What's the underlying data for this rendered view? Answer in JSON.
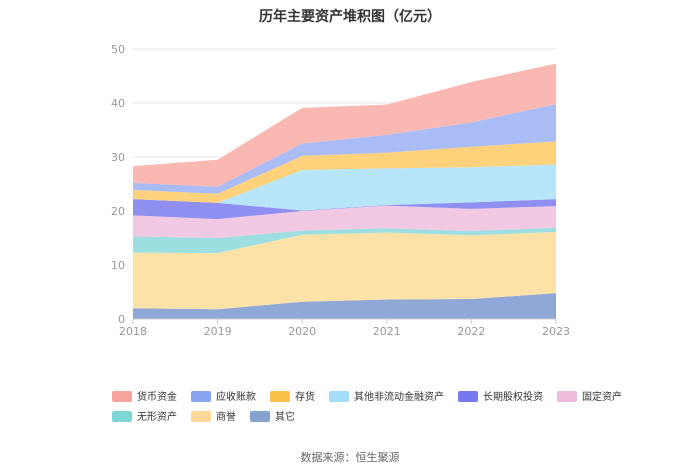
{
  "chart_data": {
    "type": "area",
    "stacked": true,
    "title": "历年主要资产堆积图（亿元）",
    "x": [
      "2018",
      "2019",
      "2020",
      "2021",
      "2022",
      "2023"
    ],
    "yticks": [
      "0",
      "10",
      "20",
      "30",
      "40",
      "50"
    ],
    "ylim": [
      0,
      50
    ],
    "grid": true,
    "legend_position": "bottom",
    "series": [
      {
        "name": "其它",
        "color": "#8fa8d6",
        "values": [
          2.0,
          1.8,
          3.2,
          3.6,
          3.7,
          4.8
        ]
      },
      {
        "name": "商誉",
        "color": "#fde2a8",
        "values": [
          10.3,
          10.4,
          12.4,
          12.4,
          11.8,
          11.3
        ]
      },
      {
        "name": "无形资产",
        "color": "#9ddfe0",
        "values": [
          3.0,
          2.8,
          0.8,
          0.8,
          0.8,
          0.8
        ]
      },
      {
        "name": "固定资产",
        "color": "#f2c9e2",
        "values": [
          3.9,
          3.5,
          3.6,
          4.2,
          4.1,
          4.0
        ]
      },
      {
        "name": "长期股权投资",
        "color": "#8f8ff2",
        "values": [
          3.0,
          3.0,
          0.1,
          0.1,
          1.2,
          1.3
        ]
      },
      {
        "name": "其他非流动金融资产",
        "color": "#b7e6fb",
        "values": [
          0.0,
          0.0,
          7.5,
          6.8,
          6.5,
          6.4
        ]
      },
      {
        "name": "存货",
        "color": "#fdd27a",
        "values": [
          1.7,
          1.7,
          2.6,
          2.9,
          3.8,
          4.3
        ]
      },
      {
        "name": "应收账款",
        "color": "#a9bcf5",
        "values": [
          1.3,
          1.3,
          2.3,
          3.3,
          4.5,
          6.9
        ]
      },
      {
        "name": "货币资金",
        "color": "#f9b8b2",
        "values": [
          3.1,
          5.0,
          6.6,
          5.6,
          7.5,
          7.5
        ]
      }
    ],
    "legend_order": [
      "货币资金",
      "应收账款",
      "存货",
      "其他非流动金融资产",
      "长期股权投资",
      "固定资产",
      "无形资产",
      "商誉",
      "其它"
    ]
  },
  "legend_colors": {
    "货币资金": "#f4a29c",
    "应收账款": "#8aa3ef",
    "存货": "#fcc14a",
    "其他非流动金融资产": "#a2dcf7",
    "长期股权投资": "#7777ee",
    "固定资产": "#eebcdb",
    "无形资产": "#7fd6d6",
    "商誉": "#fdd89a",
    "其它": "#86a2d0"
  },
  "source": "数据来源：恒生聚源"
}
